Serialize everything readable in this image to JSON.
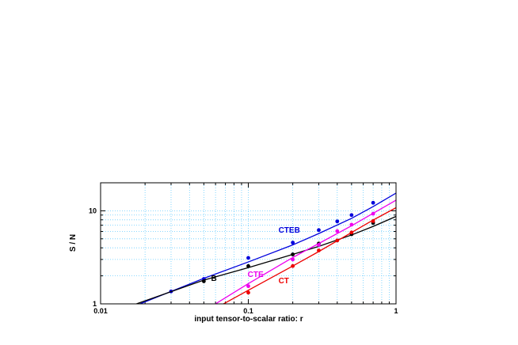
{
  "chart_data": {
    "type": "line",
    "xlabel": "input tensor-to-scalar ratio: r",
    "ylabel": "S / N",
    "x_scale": "log",
    "y_scale": "log",
    "xlim": [
      0.01,
      1
    ],
    "ylim": [
      1,
      20
    ],
    "x_ticks": [
      {
        "value": 0.01,
        "label": "0.01"
      },
      {
        "value": 0.1,
        "label": "0.1"
      },
      {
        "value": 1,
        "label": "1"
      }
    ],
    "y_ticks": [
      {
        "value": 1,
        "label": "1"
      },
      {
        "value": 10,
        "label": "10"
      }
    ],
    "grid": true,
    "grid_color": "#66ccff",
    "series": [
      {
        "name": "CTEB",
        "color": "#0000dd",
        "points": [
          [
            0.03,
            1.36
          ],
          [
            0.05,
            1.85
          ],
          [
            0.1,
            3.12
          ],
          [
            0.2,
            4.55
          ],
          [
            0.3,
            6.2
          ],
          [
            0.4,
            7.7
          ],
          [
            0.5,
            9.0
          ],
          [
            0.7,
            12.2
          ]
        ],
        "fit": [
          [
            0.0185,
            1.0
          ],
          [
            0.05,
            1.88
          ],
          [
            0.1,
            2.82
          ],
          [
            0.2,
            4.3
          ],
          [
            0.3,
            5.7
          ],
          [
            0.5,
            8.3
          ],
          [
            0.7,
            11.1
          ],
          [
            1.0,
            15.5
          ]
        ]
      },
      {
        "name": "B",
        "color": "#000000",
        "points": [
          [
            0.05,
            1.75
          ],
          [
            0.1,
            2.55
          ],
          [
            0.2,
            3.4
          ],
          [
            0.3,
            4.45
          ],
          [
            0.5,
            5.6
          ],
          [
            0.7,
            7.4
          ]
        ],
        "fit": [
          [
            0.0175,
            1.0
          ],
          [
            0.05,
            1.8
          ],
          [
            0.1,
            2.45
          ],
          [
            0.2,
            3.4
          ],
          [
            0.3,
            4.15
          ],
          [
            0.5,
            5.5
          ],
          [
            0.7,
            6.8
          ],
          [
            1.0,
            8.7
          ]
        ]
      },
      {
        "name": "CTE",
        "color": "#ee00ee",
        "points": [
          [
            0.1,
            1.55
          ],
          [
            0.2,
            3.0
          ],
          [
            0.3,
            4.3
          ],
          [
            0.4,
            6.05
          ],
          [
            0.5,
            7.1
          ],
          [
            0.7,
            9.3
          ]
        ],
        "fit": [
          [
            0.06,
            1.0
          ],
          [
            0.1,
            1.65
          ],
          [
            0.2,
            3.15
          ],
          [
            0.3,
            4.45
          ],
          [
            0.5,
            6.9
          ],
          [
            0.7,
            9.4
          ],
          [
            1.0,
            13.0
          ]
        ]
      },
      {
        "name": "CT",
        "color": "#ee0000",
        "points": [
          [
            0.1,
            1.32
          ],
          [
            0.2,
            2.55
          ],
          [
            0.3,
            3.75
          ],
          [
            0.4,
            4.8
          ],
          [
            0.5,
            5.85
          ],
          [
            0.7,
            7.75
          ]
        ],
        "fit": [
          [
            0.068,
            1.0
          ],
          [
            0.1,
            1.4
          ],
          [
            0.2,
            2.55
          ],
          [
            0.3,
            3.65
          ],
          [
            0.5,
            5.85
          ],
          [
            0.7,
            7.95
          ],
          [
            1.0,
            10.8
          ]
        ]
      }
    ],
    "annotations": [
      {
        "text": "CTEB",
        "x": 0.16,
        "y": 5.8,
        "color": "#0000dd"
      },
      {
        "text": "B",
        "x": 0.056,
        "y": 1.77,
        "color": "#000000"
      },
      {
        "text": "CTE",
        "x": 0.099,
        "y": 1.95,
        "color": "#ee00ee"
      },
      {
        "text": "CT",
        "x": 0.16,
        "y": 1.67,
        "color": "#ee0000"
      }
    ]
  }
}
